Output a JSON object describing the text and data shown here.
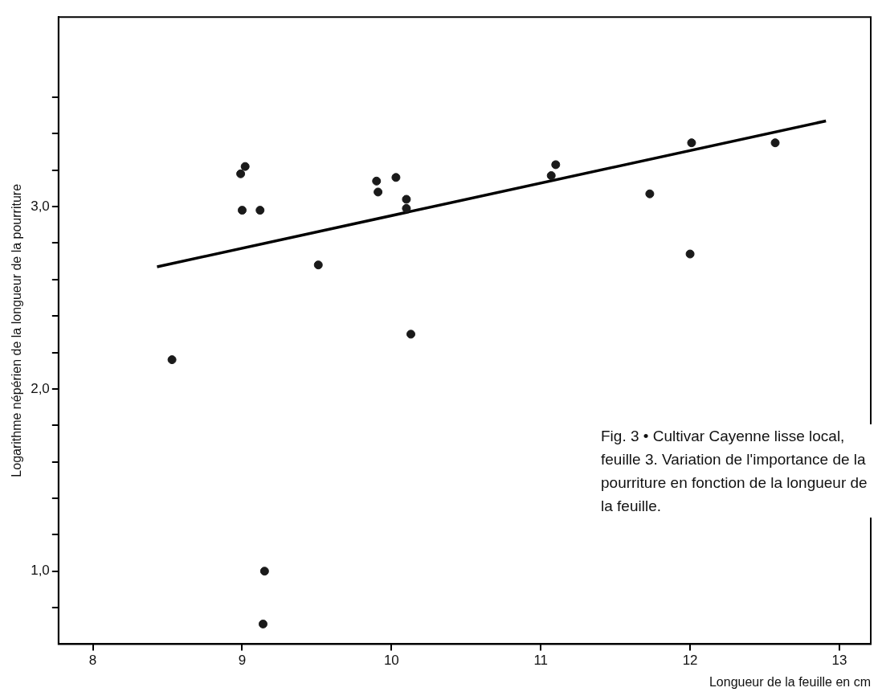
{
  "chart_data": {
    "type": "scatter",
    "xlabel": "Longueur de la feuille en cm",
    "ylabel": "Logarithme népérien de la longueur de la pourriture",
    "annotations": [
      "Fig. 3 • Cultivar Cayenne lisse local, feuille 3. Variation de l'importance de la pourriture en fonction de la longueur de la feuille."
    ],
    "xlim": [
      7.77,
      13.21
    ],
    "xticks": [
      8,
      9,
      10,
      11,
      12,
      13
    ],
    "ylim": [
      0.6,
      4.04
    ],
    "yticks": [
      {
        "value": 0.8,
        "label": null
      },
      {
        "value": 1,
        "label": "1,0"
      },
      {
        "value": 1.2,
        "label": null
      },
      {
        "value": 1.4,
        "label": null
      },
      {
        "value": 1.6,
        "label": null
      },
      {
        "value": 1.8,
        "label": null
      },
      {
        "value": 2,
        "label": "2,0"
      },
      {
        "value": 2.2,
        "label": null
      },
      {
        "value": 2.4,
        "label": null
      },
      {
        "value": 2.6,
        "label": null
      },
      {
        "value": 2.8,
        "label": null
      },
      {
        "value": 3,
        "label": "3,0"
      },
      {
        "value": 3.2,
        "label": null
      },
      {
        "value": 3.4,
        "label": null
      },
      {
        "value": 3.6,
        "label": null
      }
    ],
    "grid": false,
    "legend": false,
    "marker": "circle",
    "series": [
      {
        "color": "#1a1a1a",
        "x": [
          9.02,
          8.99,
          9.0,
          9.12,
          9.9,
          9.91,
          10.03,
          10.1,
          10.1,
          11.1,
          11.07,
          9.51,
          10.13,
          8.53,
          12.01,
          11.73,
          12.0,
          12.57,
          9.15,
          9.14
        ],
        "values": [
          3.22,
          3.18,
          2.98,
          2.98,
          3.14,
          3.08,
          3.16,
          3.04,
          2.99,
          3.23,
          3.17,
          2.68,
          2.3,
          2.16,
          3.35,
          3.07,
          2.74,
          3.35,
          1.0,
          0.71
        ]
      },
      {
        "type": "line",
        "color": "#000000",
        "marker": "none",
        "line_style": "solid",
        "x": [
          8.43,
          12.91
        ],
        "values": [
          2.67,
          3.47
        ]
      }
    ]
  }
}
